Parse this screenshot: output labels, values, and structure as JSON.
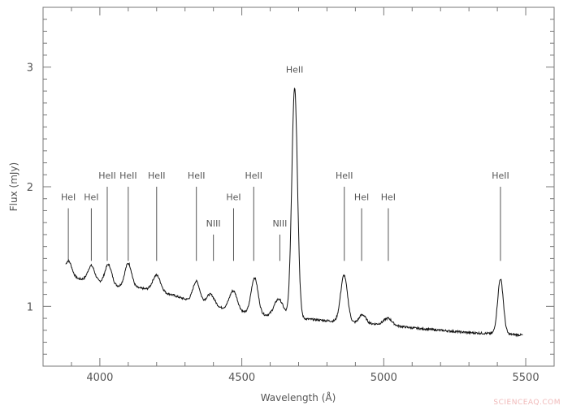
{
  "watermark": "SCIENCEAQ.COM",
  "chart_data": {
    "type": "line",
    "title": "",
    "xlabel": "Wavelength (Å)",
    "ylabel": "Flux (mJy)",
    "xlim": [
      3800,
      5600
    ],
    "ylim": [
      0.5,
      3.5
    ],
    "x_ticks": [
      4000,
      4500,
      5000,
      5500
    ],
    "y_ticks": [
      1,
      2,
      3
    ],
    "grid": false,
    "continuum": [
      [
        3880,
        1.26
      ],
      [
        3900,
        1.24
      ],
      [
        3950,
        1.22
      ],
      [
        4000,
        1.2
      ],
      [
        4050,
        1.17
      ],
      [
        4100,
        1.16
      ],
      [
        4150,
        1.15
      ],
      [
        4200,
        1.12
      ],
      [
        4250,
        1.1
      ],
      [
        4300,
        1.06
      ],
      [
        4400,
        1.0
      ],
      [
        4500,
        0.95
      ],
      [
        4600,
        0.92
      ],
      [
        4700,
        0.9
      ],
      [
        4800,
        0.88
      ],
      [
        4900,
        0.86
      ],
      [
        5000,
        0.85
      ],
      [
        5100,
        0.82
      ],
      [
        5200,
        0.8
      ],
      [
        5300,
        0.78
      ],
      [
        5400,
        0.77
      ],
      [
        5490,
        0.76
      ]
    ],
    "emission_features": [
      {
        "x": 3890,
        "peak": 1.38,
        "width": 12
      },
      {
        "x": 3970,
        "peak": 1.34,
        "width": 12
      },
      {
        "x": 4030,
        "peak": 1.35,
        "width": 12
      },
      {
        "x": 4100,
        "peak": 1.36,
        "width": 12
      },
      {
        "x": 4200,
        "peak": 1.26,
        "width": 14
      },
      {
        "x": 4340,
        "peak": 1.21,
        "width": 12
      },
      {
        "x": 4390,
        "peak": 1.1,
        "width": 14
      },
      {
        "x": 4470,
        "peak": 1.13,
        "width": 14
      },
      {
        "x": 4545,
        "peak": 1.24,
        "width": 12
      },
      {
        "x": 4630,
        "peak": 1.06,
        "width": 16
      },
      {
        "x": 4686,
        "peak": 2.83,
        "width": 10
      },
      {
        "x": 4860,
        "peak": 1.26,
        "width": 12
      },
      {
        "x": 4925,
        "peak": 0.93,
        "width": 12
      },
      {
        "x": 5015,
        "peak": 0.9,
        "width": 14
      },
      {
        "x": 5411,
        "peak": 1.23,
        "width": 10
      }
    ],
    "line_markers": [
      {
        "label": "HeI",
        "x": 3889,
        "y_bottom": 1.38,
        "y_top": 1.82,
        "label_row": "low"
      },
      {
        "label": "HeI",
        "x": 3970,
        "y_bottom": 1.38,
        "y_top": 1.82,
        "label_row": "low"
      },
      {
        "label": "HeII",
        "x": 4026,
        "y_bottom": 1.38,
        "y_top": 2.0,
        "label_row": "high"
      },
      {
        "label": "HeII",
        "x": 4100,
        "y_bottom": 1.38,
        "y_top": 2.0,
        "label_row": "high"
      },
      {
        "label": "HeII",
        "x": 4200,
        "y_bottom": 1.38,
        "y_top": 2.0,
        "label_row": "high"
      },
      {
        "label": "HeII",
        "x": 4340,
        "y_bottom": 1.38,
        "y_top": 2.0,
        "label_row": "high"
      },
      {
        "label": "NIII",
        "x": 4400,
        "y_bottom": 1.38,
        "y_top": 1.6,
        "label_row": "lowest"
      },
      {
        "label": "HeI",
        "x": 4471,
        "y_bottom": 1.38,
        "y_top": 1.82,
        "label_row": "low"
      },
      {
        "label": "HeII",
        "x": 4542,
        "y_bottom": 1.38,
        "y_top": 2.0,
        "label_row": "high"
      },
      {
        "label": "NIII",
        "x": 4634,
        "y_bottom": 1.38,
        "y_top": 1.6,
        "label_row": "lowest"
      },
      {
        "label": "HeII",
        "x": 4686,
        "y_bottom": 2.9,
        "y_top": 2.9,
        "label_row": "top"
      },
      {
        "label": "HeII",
        "x": 4861,
        "y_bottom": 1.38,
        "y_top": 2.0,
        "label_row": "high"
      },
      {
        "label": "HeI",
        "x": 4922,
        "y_bottom": 1.38,
        "y_top": 1.82,
        "label_row": "low"
      },
      {
        "label": "HeI",
        "x": 5016,
        "y_bottom": 1.38,
        "y_top": 1.82,
        "label_row": "low"
      },
      {
        "label": "HeII",
        "x": 5411,
        "y_bottom": 1.38,
        "y_top": 2.0,
        "label_row": "high"
      }
    ]
  }
}
